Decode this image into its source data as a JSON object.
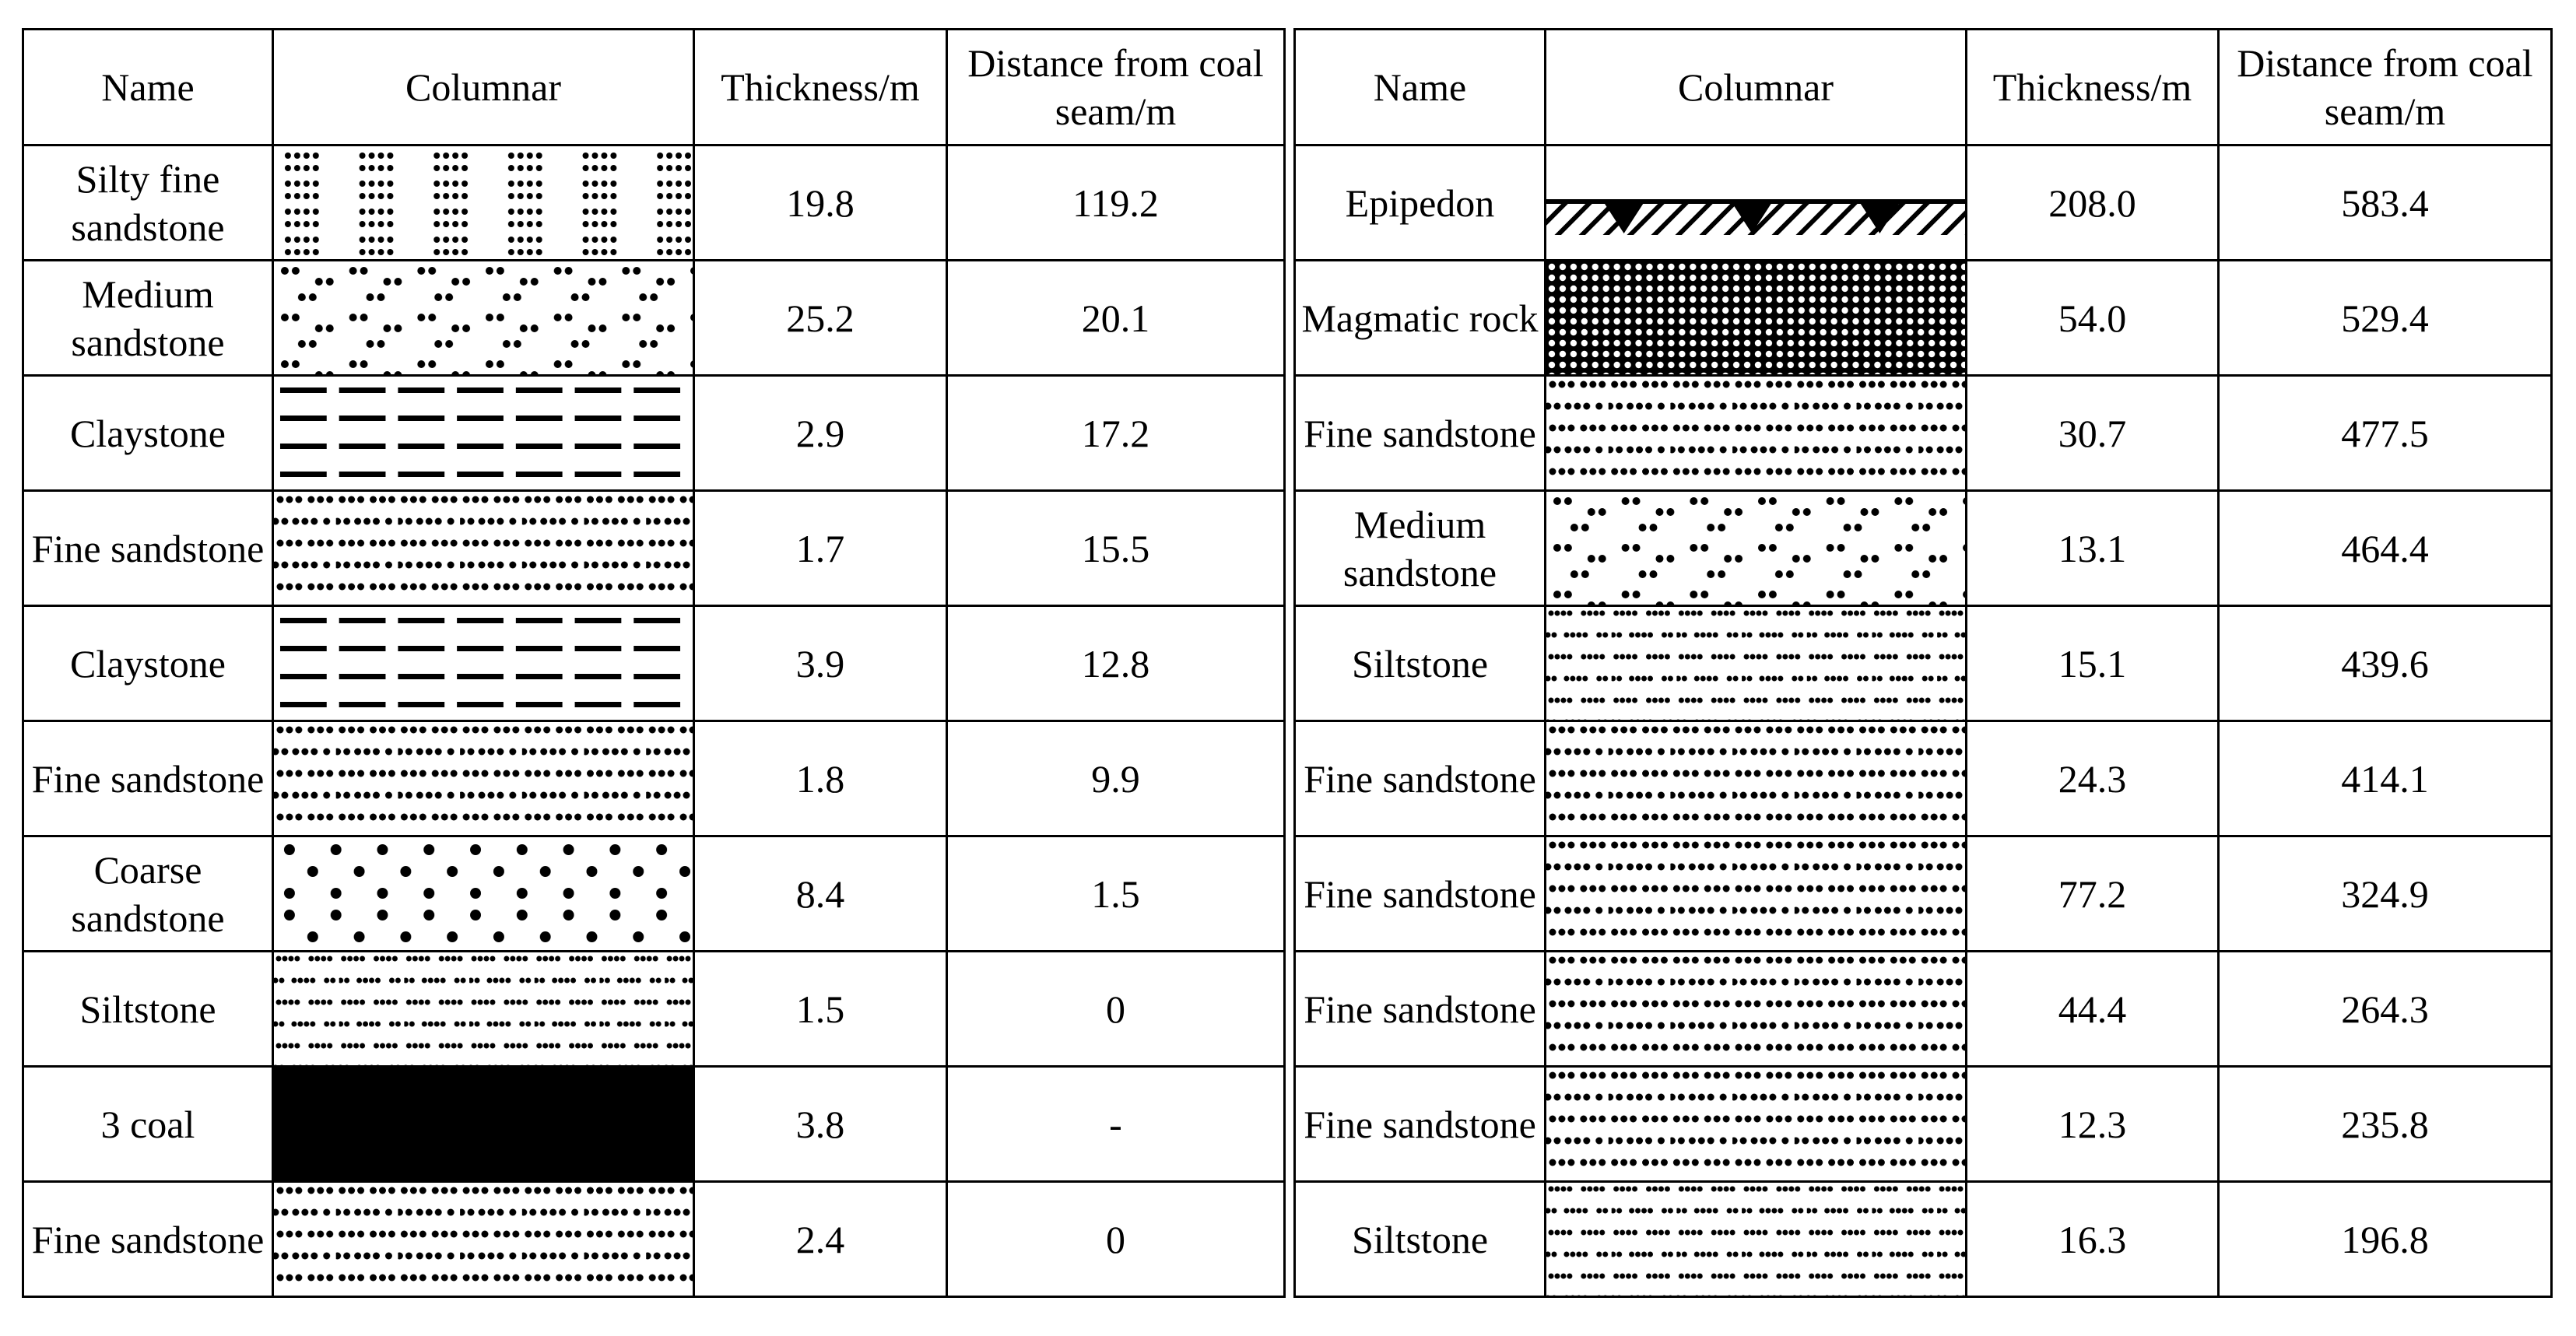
{
  "header": {
    "name": "Name",
    "columnar": "Columnar",
    "thickness": "Thickness/m",
    "distance": "Distance from coal seam/m"
  },
  "left_table": [
    {
      "name": "Silty fine sandstone",
      "columnar": "silty-fine-sandstone-pattern",
      "thickness": "19.8",
      "distance": "119.2"
    },
    {
      "name": "Medium sandstone",
      "columnar": "medium-sandstone-pattern",
      "thickness": "25.2",
      "distance": "20.1"
    },
    {
      "name": "Claystone",
      "columnar": "claystone-pattern",
      "thickness": "2.9",
      "distance": "17.2"
    },
    {
      "name": "Fine sandstone",
      "columnar": "fine-sandstone-pattern",
      "thickness": "1.7",
      "distance": "15.5"
    },
    {
      "name": "Claystone",
      "columnar": "claystone-pattern",
      "thickness": "3.9",
      "distance": "12.8"
    },
    {
      "name": "Fine sandstone",
      "columnar": "fine-sandstone-pattern",
      "thickness": "1.8",
      "distance": "9.9"
    },
    {
      "name": "Coarse sandstone",
      "columnar": "coarse-sandstone-pattern",
      "thickness": "8.4",
      "distance": "1.5"
    },
    {
      "name": "Siltstone",
      "columnar": "siltstone-pattern",
      "thickness": "1.5",
      "distance": "0"
    },
    {
      "name": "3 coal",
      "columnar": "coal-pattern",
      "thickness": "3.8",
      "distance": "-"
    },
    {
      "name": "Fine sandstone",
      "columnar": "fine-sandstone-pattern",
      "thickness": "2.4",
      "distance": "0"
    }
  ],
  "right_table": [
    {
      "name": "Epipedon",
      "columnar": "epipedon-pattern",
      "thickness": "208.0",
      "distance": "583.4"
    },
    {
      "name": "Magmatic rock",
      "columnar": "magmatic-rock-pattern",
      "thickness": "54.0",
      "distance": "529.4"
    },
    {
      "name": "Fine sandstone",
      "columnar": "fine-sandstone-pattern",
      "thickness": "30.7",
      "distance": "477.5"
    },
    {
      "name": "Medium sandstone",
      "columnar": "medium-sandstone-pattern",
      "thickness": "13.1",
      "distance": "464.4"
    },
    {
      "name": "Siltstone",
      "columnar": "siltstone-pattern",
      "thickness": "15.1",
      "distance": "439.6"
    },
    {
      "name": "Fine sandstone",
      "columnar": "fine-sandstone-pattern",
      "thickness": "24.3",
      "distance": "414.1"
    },
    {
      "name": "Fine sandstone",
      "columnar": "fine-sandstone-pattern",
      "thickness": "77.2",
      "distance": "324.9"
    },
    {
      "name": "Fine sandstone",
      "columnar": "fine-sandstone-pattern",
      "thickness": "44.4",
      "distance": "264.3"
    },
    {
      "name": "Fine sandstone",
      "columnar": "fine-sandstone-pattern",
      "thickness": "12.3",
      "distance": "235.8"
    },
    {
      "name": "Siltstone",
      "columnar": "siltstone-pattern",
      "thickness": "16.3",
      "distance": "196.8"
    }
  ]
}
